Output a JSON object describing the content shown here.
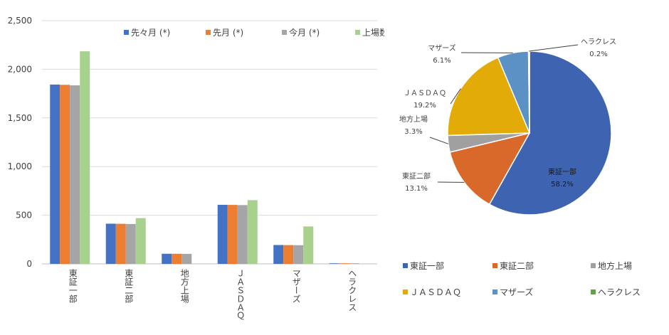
{
  "chart_data": [
    {
      "type": "bar",
      "title": "",
      "xlabel": "",
      "ylabel": "",
      "ylim": [
        0,
        2500
      ],
      "yticks": [
        0,
        500,
        1000,
        1500,
        2000,
        2500
      ],
      "ytick_labels": [
        "0",
        "500",
        "1,000",
        "1,500",
        "2,000",
        "2,500"
      ],
      "grid": true,
      "legend_position": "top",
      "categories": [
        "東証一部",
        "東証二部",
        "地方上場",
        "ＪＡＳＤＡＱ",
        "マザーズ",
        "ヘラクレス"
      ],
      "series": [
        {
          "name": "先々月 (*)",
          "color": "#4472C4",
          "values": [
            1843,
            413,
            104,
            607,
            194,
            6
          ]
        },
        {
          "name": "先月 (*)",
          "color": "#ED7D31",
          "values": [
            1840,
            412,
            104,
            606,
            193,
            6
          ]
        },
        {
          "name": "今月 (*)",
          "color": "#A5A5A5",
          "values": [
            1835,
            410,
            103,
            604,
            192,
            6
          ]
        },
        {
          "name": "上場数",
          "color": "#A9D18E",
          "values": [
            2185,
            470,
            null,
            655,
            385,
            null
          ]
        }
      ]
    },
    {
      "type": "pie",
      "title": "",
      "legend_position": "bottom",
      "slices": [
        {
          "name": "東証一部",
          "value": 58.2,
          "label": "58.2%",
          "color": "#3E63B1"
        },
        {
          "name": "東証二部",
          "value": 13.1,
          "label": "13.1%",
          "color": "#D9682B"
        },
        {
          "name": "地方上場",
          "value": 3.3,
          "label": "3.3%",
          "color": "#A0A0A0"
        },
        {
          "name": "ＪＡＳＤＡＱ",
          "value": 19.2,
          "label": "19.2%",
          "color": "#E2AB07"
        },
        {
          "name": "マザーズ",
          "value": 6.1,
          "label": "6.1%",
          "color": "#5B91C5"
        },
        {
          "name": "ヘラクレス",
          "value": 0.2,
          "label": "0.2%",
          "color": "#5FA540"
        }
      ]
    }
  ]
}
